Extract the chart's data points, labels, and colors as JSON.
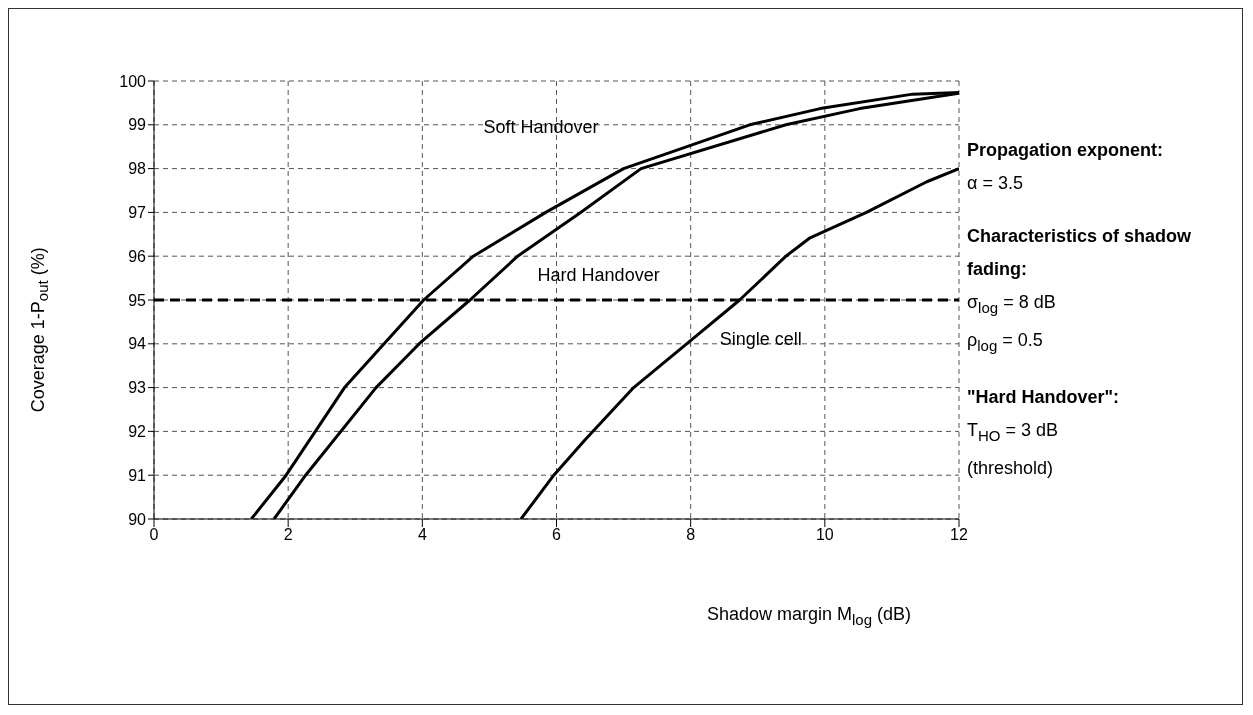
{
  "chart_data": {
    "type": "line",
    "xlabel": "Shadow margin M$_{log}$ (dB)",
    "ylabel": "Coverage 1-P$_{out}$ (%)",
    "xlim": [
      0,
      12
    ],
    "xticks": [
      0,
      2,
      4,
      6,
      8,
      10,
      12
    ],
    "ylim": [
      90,
      100
    ],
    "yticks": [
      90,
      91,
      92,
      93,
      94,
      95,
      96,
      97,
      98,
      99,
      100
    ],
    "grid": true,
    "legend": false,
    "marker": "none",
    "line_style": "solid",
    "series": [
      {
        "name": "Soft Handover",
        "color": "#000000",
        "x": [
          1.45,
          1.97,
          2.84,
          4.02,
          4.76,
          5.84,
          7.0,
          8.88,
          9.93,
          11.31,
          12
        ],
        "values": [
          90.0,
          91.0,
          93.0,
          95.0,
          96.0,
          97.0,
          98.0,
          99.0,
          99.37,
          99.7,
          99.74
        ]
      },
      {
        "name": "Hard Handover",
        "color": "#000000",
        "x": [
          1.79,
          2.26,
          3.31,
          3.98,
          4.71,
          5.42,
          6.36,
          7.26,
          9.42,
          10.52,
          12
        ],
        "values": [
          90.0,
          91.0,
          93.0,
          94.04,
          95.0,
          96.0,
          97.0,
          98.0,
          99.0,
          99.37,
          99.72
        ]
      },
      {
        "name": "Single cell",
        "color": "#000000",
        "x": [
          5.47,
          5.96,
          6.42,
          7.15,
          7.94,
          8.73,
          9.42,
          9.78,
          10.62,
          11.52,
          12
        ],
        "values": [
          90.0,
          91.0,
          91.8,
          93.0,
          94.0,
          95.0,
          96.0,
          96.42,
          97.0,
          97.7,
          98.0
        ]
      }
    ],
    "ref_lines": [
      {
        "axis": "y",
        "value": 95,
        "color": "#000000",
        "line_style": "dashed"
      }
    ],
    "annotations": [
      "Propagation exponent:",
      "α = 3.5",
      "Characteristics of shadow fading:",
      "σ$_{log}$ = 8 dB",
      "ρ$_{log}$ = 0.5",
      "\"Hard Handover\":",
      "T$_{HO}$ = 3 dB",
      "(threshold)"
    ]
  }
}
